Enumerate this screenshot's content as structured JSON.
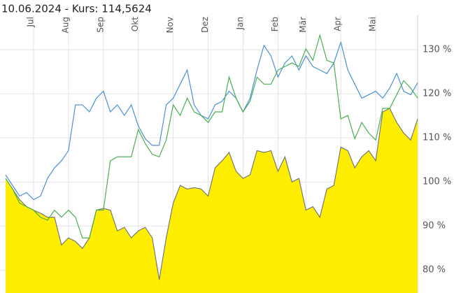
{
  "chart_data": {
    "type": "line",
    "title": "10.06.2024  -  Kurs: 114,5624",
    "categories": [
      null,
      null,
      null,
      null,
      "Jul",
      null,
      null,
      null,
      null,
      "Aug",
      null,
      null,
      null,
      null,
      "Sep",
      null,
      null,
      null,
      null,
      "Okt",
      null,
      null,
      null,
      null,
      "Nov",
      null,
      null,
      null,
      null,
      "Dez",
      null,
      null,
      null,
      null,
      "Jan",
      null,
      null,
      null,
      null,
      "Feb",
      null,
      null,
      null,
      "Mär",
      null,
      null,
      null,
      null,
      "Apr",
      null,
      null,
      null,
      null,
      "Mai",
      null,
      null,
      null,
      null,
      null,
      null
    ],
    "series": [
      {
        "kind": "area",
        "color": "#ffee00",
        "line_color": "#777777",
        "values": [
          100.8,
          98.4,
          96,
          94.4,
          93.6,
          92.9,
          92,
          92,
          85.7,
          87.3,
          86.5,
          84.9,
          87.3,
          93.6,
          94,
          93.6,
          88.9,
          89.7,
          87.3,
          88.9,
          89.7,
          87.3,
          77.8,
          87.3,
          95.2,
          99.2,
          98.4,
          98.7,
          98.4,
          96.8,
          103.2,
          104.8,
          106.7,
          102.4,
          100.8,
          101.6,
          107.1,
          106.7,
          107.1,
          102.4,
          105.7,
          100,
          100.8,
          93.6,
          94.4,
          92,
          98.4,
          99.2,
          107.9,
          107.1,
          103.2,
          105.7,
          107.1,
          104.8,
          115.9,
          116.7,
          113.5,
          111.1,
          109.5,
          114.3
        ]
      },
      {
        "color": "#4a90d9",
        "values": [
          101.6,
          99.2,
          96.8,
          97.6,
          96,
          96.8,
          100.8,
          103.2,
          104.8,
          107.1,
          117.5,
          117.5,
          115.9,
          119,
          120.6,
          115.9,
          117.5,
          115.1,
          117.5,
          112.7,
          109.8,
          108.3,
          108.3,
          117.5,
          119,
          122.2,
          125.4,
          117.5,
          115.1,
          114.3,
          117.5,
          118.3,
          120.6,
          119,
          115.9,
          119,
          125.4,
          131,
          128.6,
          123.8,
          127,
          128.6,
          125.4,
          128.6,
          126.2,
          125.4,
          124.6,
          127,
          131.7,
          125.4,
          122.2,
          119,
          119.8,
          120.6,
          119,
          121.3,
          124.6,
          120.6,
          119.8,
          122.5
        ]
      },
      {
        "color": "#4caf50",
        "values": [
          100.8,
          98.4,
          95.2,
          94.4,
          93.6,
          92,
          91.3,
          93.6,
          92,
          93.6,
          92,
          87.3,
          87.3,
          93.6,
          93.6,
          104.8,
          105.7,
          105.7,
          105.7,
          111.9,
          108.7,
          106.3,
          105.7,
          109.5,
          117.5,
          115.1,
          119,
          115.9,
          115.1,
          113.5,
          115.9,
          115.9,
          123.8,
          119,
          115.9,
          118.3,
          123.8,
          122.2,
          122.2,
          125.4,
          126.2,
          127,
          126.2,
          130.2,
          127.6,
          133.3,
          127.6,
          127,
          114.3,
          115.1,
          109.8,
          113.5,
          111.1,
          109.5,
          116.7,
          116.7,
          119.8,
          123,
          121.3,
          119
        ]
      }
    ],
    "ylim": [
      74.8,
      137.8
    ],
    "yticks": [
      {
        "value": 80,
        "label": "80 %"
      },
      {
        "value": 90,
        "label": "90 %"
      },
      {
        "value": 100,
        "label": "100 %"
      },
      {
        "value": 110,
        "label": "110 %"
      },
      {
        "value": 120,
        "label": "120 %"
      },
      {
        "value": 130,
        "label": "130 %"
      }
    ],
    "grid": true
  }
}
